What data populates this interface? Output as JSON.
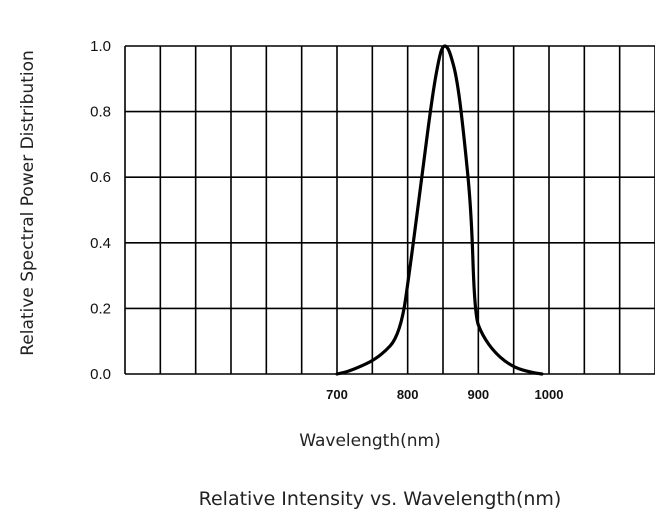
{
  "chart_data": {
    "type": "line",
    "title": "",
    "xlabel": "Wavelength(nm)",
    "ylabel": "Relative Spectral Power Distribution",
    "caption": "Relative Intensity vs. Wavelength(nm)",
    "xlim": [
      400,
      1150
    ],
    "ylim": [
      0,
      1.0
    ],
    "grid": true,
    "x_ticks": [
      700,
      800,
      900,
      1000
    ],
    "y_ticks": [
      "0.0",
      "0.2",
      "0.4",
      "0.6",
      "0.8",
      "1.0"
    ],
    "series": [
      {
        "x": [
          700,
          720,
          760,
          790,
          805,
          820,
          835,
          845,
          850,
          855,
          860,
          870,
          880,
          890,
          895,
          905,
          925,
          950,
          975,
          990
        ],
        "y": [
          0.0,
          0.01,
          0.05,
          0.12,
          0.35,
          0.6,
          0.85,
          0.97,
          1.0,
          1.0,
          0.98,
          0.9,
          0.72,
          0.5,
          0.18,
          0.12,
          0.06,
          0.02,
          0.005,
          0.0
        ]
      }
    ]
  }
}
